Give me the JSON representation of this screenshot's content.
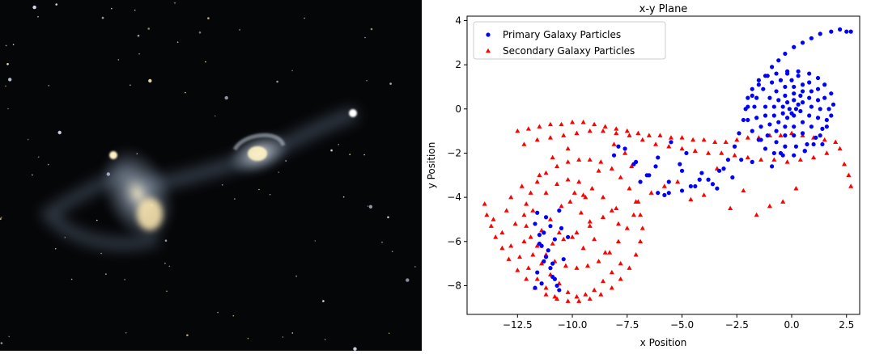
{
  "photo": {
    "subject": "galaxy-pair-photo",
    "colors": {
      "sky": "#050608",
      "glow": "#c9d6e6",
      "core": "#ffe7a8"
    }
  },
  "chart_data": {
    "type": "scatter",
    "title": "x-y Plane",
    "xlabel": "x Position",
    "ylabel": "y Position",
    "xlim": [
      -14.8,
      3.1
    ],
    "ylim": [
      -9.3,
      4.2
    ],
    "x_ticks": [
      -12.5,
      -10.0,
      -7.5,
      -5.0,
      -2.5,
      0.0,
      2.5
    ],
    "x_tick_labels": [
      "−12.5",
      "−10.0",
      "−7.5",
      "−5.0",
      "−2.5",
      "0.0",
      "2.5"
    ],
    "y_ticks": [
      -8,
      -6,
      -4,
      -2,
      0,
      2,
      4
    ],
    "y_tick_labels": [
      "−8",
      "−6",
      "−4",
      "−2",
      "0",
      "2",
      "4"
    ],
    "grid": false,
    "legend_position": "top-left",
    "series": [
      {
        "name": "Primary Galaxy Particles",
        "marker": "circle",
        "color": "#0000ff",
        "x": [
          2.7,
          2.5,
          2.2,
          1.8,
          1.3,
          0.9,
          0.5,
          0.1,
          -0.3,
          -0.6,
          -0.9,
          -1.2,
          -1.5,
          -1.8,
          -2.0,
          -2.2,
          -2.4,
          -2.6,
          -2.9,
          -3.3,
          -3.8,
          -4.4,
          -5.0,
          -5.6,
          -6.1,
          -0.2,
          0.3,
          0.8,
          1.2,
          1.5,
          1.8,
          1.9,
          1.8,
          1.6,
          1.3,
          1.0,
          0.6,
          0.1,
          -0.4,
          -0.8,
          -1.2,
          -1.5,
          -1.8,
          -2.0,
          -2.1,
          -2.0,
          -1.8,
          -1.5,
          -1.1,
          -0.7,
          -0.2,
          0.3,
          0.8,
          1.2,
          1.5,
          1.7,
          1.6,
          1.4,
          1.1,
          0.7,
          0.2,
          -0.3,
          -0.7,
          -1.1,
          -1.4,
          -1.6,
          -1.7,
          -1.6,
          -1.3,
          -0.9,
          -0.5,
          0.0,
          0.5,
          0.9,
          1.2,
          1.3,
          1.2,
          0.9,
          0.5,
          0.1,
          -0.3,
          -0.7,
          -1.0,
          -1.2,
          -1.2,
          -1.0,
          -0.7,
          -0.3,
          0.1,
          0.5,
          0.8,
          0.9,
          0.8,
          0.5,
          0.1,
          -0.3,
          -0.6,
          -0.8,
          -0.8,
          -0.6,
          -0.3,
          0.1,
          0.4,
          0.5,
          0.4,
          0.1,
          -0.2,
          -0.4,
          -0.4,
          -0.2,
          0.1,
          0.3,
          0.2,
          0.0,
          -0.1,
          -0.9,
          -1.4,
          -0.5,
          0.6,
          1.4,
          -1.8,
          -2.3,
          -2.7,
          -3.1,
          -3.6,
          -4.1,
          -4.6,
          -5.1,
          -5.6,
          -6.1,
          -6.6,
          -7.1,
          -7.6,
          -8.1,
          -3.4,
          -4.2,
          -5.0,
          -5.8,
          -6.5,
          -7.2,
          -7.9,
          -4.8,
          -5.5,
          -6.2,
          -6.9,
          -11.6,
          -11.7,
          -11.5,
          -11.4,
          -11.2,
          -11.0,
          -10.9,
          -10.7,
          -10.6,
          -11.3,
          -11.1,
          -10.8,
          -10.5,
          -11.6,
          -11.4,
          -11.0,
          -10.2,
          -10.4,
          -11.2,
          -10.9,
          -11.7,
          -11.5,
          -11.3,
          -10.8,
          -10.6
        ],
        "y": [
          3.5,
          3.5,
          3.6,
          3.5,
          3.4,
          3.2,
          3.0,
          2.8,
          2.5,
          2.2,
          1.9,
          1.5,
          1.1,
          0.6,
          0.1,
          -0.5,
          -1.1,
          -1.7,
          -2.3,
          -2.8,
          -3.2,
          -3.5,
          -3.7,
          -3.8,
          -3.8,
          1.7,
          1.7,
          1.6,
          1.4,
          1.1,
          0.7,
          0.2,
          -0.3,
          -0.8,
          -1.2,
          -1.6,
          -1.9,
          -2.1,
          -2.1,
          -2.0,
          -1.8,
          -1.4,
          -1.0,
          -0.5,
          0.0,
          0.5,
          0.9,
          1.3,
          1.5,
          1.6,
          1.6,
          1.5,
          1.2,
          0.9,
          0.5,
          0.0,
          -0.5,
          -0.9,
          -1.3,
          -1.6,
          -1.7,
          -1.7,
          -1.5,
          -1.2,
          -0.8,
          -0.4,
          0.1,
          0.5,
          0.9,
          1.2,
          1.3,
          1.3,
          1.1,
          0.8,
          0.4,
          0.0,
          -0.4,
          -0.8,
          -1.1,
          -1.2,
          -1.2,
          -1.0,
          -0.7,
          -0.3,
          0.1,
          0.5,
          0.8,
          1.0,
          1.0,
          0.8,
          0.5,
          0.1,
          -0.3,
          -0.6,
          -0.8,
          -0.8,
          -0.6,
          -0.3,
          0.1,
          0.4,
          0.6,
          0.7,
          0.6,
          0.3,
          -0.1,
          -0.3,
          -0.4,
          -0.2,
          0.1,
          0.3,
          0.4,
          0.2,
          0.0,
          -0.2,
          0.0,
          -2.6,
          -1.4,
          -2.0,
          -1.9,
          -1.6,
          -2.4,
          -2.3,
          -3.1,
          -2.7,
          -3.4,
          -2.9,
          -3.5,
          -2.5,
          -3.3,
          -2.2,
          -3.0,
          -2.4,
          -1.8,
          -2.1,
          -3.6,
          -3.2,
          -2.8,
          -3.9,
          -3.0,
          -2.5,
          -1.7,
          -2.0,
          -1.5,
          -2.6,
          -3.3,
          -4.7,
          -5.2,
          -5.7,
          -6.2,
          -6.7,
          -7.2,
          -7.6,
          -8.0,
          -8.2,
          -6.9,
          -6.4,
          -5.9,
          -5.4,
          -7.4,
          -7.9,
          -5.3,
          -5.8,
          -6.8,
          -4.9,
          -7.0,
          -8.1,
          -6.1,
          -5.6,
          -7.7,
          -4.6
        ]
      },
      {
        "name": "Secondary Galaxy Particles",
        "marker": "triangle",
        "color": "#ff0000",
        "x": [
          -14.0,
          -13.9,
          -13.7,
          -13.5,
          -13.2,
          -12.9,
          -12.5,
          -12.1,
          -11.7,
          -11.2,
          -10.7,
          -10.2,
          -9.7,
          -9.2,
          -8.7,
          -8.2,
          -7.8,
          -7.4,
          -7.1,
          -6.9,
          -6.8,
          -6.9,
          -7.1,
          -7.4,
          -7.8,
          -8.2,
          -8.7,
          -9.2,
          -9.7,
          -10.2,
          -10.7,
          -11.2,
          -11.6,
          -11.9,
          -12.1,
          -12.2,
          -12.1,
          -11.9,
          -11.6,
          -11.2,
          -10.8,
          -10.3,
          -9.8,
          -9.3,
          -8.8,
          -8.3,
          -7.9,
          -7.5,
          -7.2,
          -7.0,
          -8.0,
          -8.6,
          -9.2,
          -9.8,
          -10.4,
          -10.9,
          -11.4,
          -11.8,
          -11.2,
          -10.7,
          -10.2,
          -9.7,
          -9.1,
          -8.6,
          -8.2,
          -7.9,
          -10.5,
          -10.1,
          -9.6,
          -9.2,
          -10.0,
          -9.5,
          -11.0,
          -10.6,
          -9.9,
          -9.4,
          -9.0,
          -8.5,
          -12.5,
          -12.0,
          -11.5,
          -11.0,
          -10.5,
          -10.0,
          -9.5,
          -9.0,
          -8.5,
          -8.0,
          -7.5,
          -7.0,
          -6.5,
          -6.0,
          -5.5,
          -5.0,
          -4.5,
          -4.0,
          -3.5,
          -3.0,
          -2.5,
          -2.0,
          -1.5,
          -1.0,
          -0.5,
          0.0,
          0.5,
          1.0,
          1.5,
          2.0,
          -12.2,
          -11.6,
          -11.0,
          -10.4,
          -9.8,
          -9.2,
          -8.6,
          -8.0,
          -7.4,
          -6.8,
          -6.2,
          -5.6,
          -5.0,
          -4.4,
          -3.8,
          -3.2,
          -2.6,
          -2.0,
          -1.4,
          -0.8,
          -0.2,
          0.4,
          1.0,
          1.6,
          2.2,
          2.4,
          2.6,
          2.7,
          -13.6,
          -13.2,
          -12.8,
          -12.4,
          -12.0,
          -11.6,
          -11.2,
          -10.8,
          -13.0,
          -12.6,
          -12.2,
          -11.8,
          -11.4,
          -11.0,
          -10.6,
          -10.2,
          -9.8,
          -9.4,
          -9.0,
          -8.6,
          -8.2,
          -7.8,
          -6.4,
          -5.8,
          -5.2,
          -4.6,
          -4.0,
          -3.4,
          -2.8,
          -2.2,
          -1.6,
          -1.0,
          -0.4,
          0.2,
          -7.6,
          -8.1,
          -8.8,
          -9.5,
          -10.2,
          -10.9,
          -11.5,
          -12.3,
          -12.8,
          -7.3
        ],
        "y": [
          -4.3,
          -4.8,
          -5.3,
          -5.8,
          -6.3,
          -6.8,
          -7.3,
          -7.7,
          -8.1,
          -8.4,
          -8.6,
          -8.7,
          -8.7,
          -8.6,
          -8.4,
          -8.1,
          -7.7,
          -7.2,
          -6.6,
          -6.0,
          -5.4,
          -4.8,
          -4.2,
          -3.6,
          -3.1,
          -2.7,
          -2.4,
          -2.3,
          -2.3,
          -2.4,
          -2.6,
          -2.9,
          -3.3,
          -3.8,
          -4.3,
          -4.8,
          -5.3,
          -5.8,
          -6.2,
          -6.6,
          -6.9,
          -7.1,
          -7.2,
          -7.1,
          -6.9,
          -6.5,
          -6.0,
          -5.4,
          -4.8,
          -4.2,
          -4.5,
          -4.9,
          -5.3,
          -5.6,
          -5.9,
          -6.1,
          -5.5,
          -4.6,
          -3.8,
          -3.4,
          -3.2,
          -3.3,
          -3.6,
          -4.0,
          -4.6,
          -5.2,
          -4.4,
          -4.2,
          -4.7,
          -5.1,
          -5.8,
          -6.3,
          -5.0,
          -5.6,
          -3.8,
          -4.0,
          -5.9,
          -6.5,
          -1.0,
          -0.9,
          -0.8,
          -0.7,
          -0.7,
          -0.6,
          -0.6,
          -0.7,
          -0.8,
          -0.9,
          -1.0,
          -1.1,
          -1.2,
          -1.2,
          -1.3,
          -1.3,
          -1.4,
          -1.4,
          -1.5,
          -1.5,
          -1.4,
          -1.3,
          -1.3,
          -1.2,
          -1.2,
          -1.1,
          -1.2,
          -1.3,
          -1.4,
          -1.5,
          -1.6,
          -1.4,
          -1.3,
          -1.2,
          -1.1,
          -1.0,
          -1.0,
          -1.1,
          -1.2,
          -1.4,
          -1.6,
          -1.7,
          -1.8,
          -1.9,
          -2.0,
          -2.0,
          -2.1,
          -2.2,
          -2.3,
          -2.3,
          -2.4,
          -2.3,
          -2.2,
          -2.0,
          -1.8,
          -2.5,
          -3.0,
          -3.5,
          -5.0,
          -5.6,
          -6.2,
          -6.7,
          -7.2,
          -7.7,
          -8.1,
          -8.5,
          -4.6,
          -5.2,
          -6.0,
          -6.6,
          -7.0,
          -7.5,
          -7.9,
          -8.3,
          -8.5,
          -8.4,
          -8.2,
          -7.8,
          -7.4,
          -7.0,
          -3.8,
          -3.5,
          -3.3,
          -4.1,
          -3.9,
          -2.7,
          -4.5,
          -3.7,
          -4.8,
          -4.4,
          -4.2,
          -3.6,
          -2.0,
          -1.6,
          -2.8,
          -3.9,
          -1.8,
          -2.2,
          -3.0,
          -3.5,
          -4.0,
          -2.6
        ]
      }
    ]
  }
}
